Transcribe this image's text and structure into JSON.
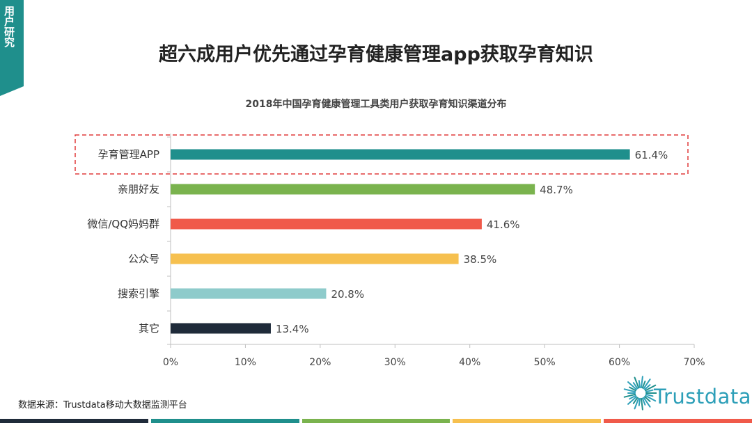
{
  "sidebar_tag": "用户研究",
  "header": {
    "title": "超六成用户优先通过孕育健康管理app获取孕育知识"
  },
  "chart_data": {
    "type": "bar",
    "orientation": "horizontal",
    "title": "2018年中国孕育健康管理工具类用户获取孕育知识渠道分布",
    "categories": [
      "孕育管理APP",
      "亲朋好友",
      "微信/QQ妈妈群",
      "公众号",
      "搜索引擎",
      "其它"
    ],
    "values": [
      61.4,
      48.7,
      41.6,
      38.5,
      20.8,
      13.4
    ],
    "value_labels": [
      "61.4%",
      "48.7%",
      "41.6%",
      "38.5%",
      "20.8%",
      "13.4%"
    ],
    "colors": [
      "#1f8f8c",
      "#7ab34e",
      "#f05a4a",
      "#f6c04f",
      "#8ecbcb",
      "#1f2b3a"
    ],
    "xlim": [
      0,
      70
    ],
    "xticks": [
      "0%",
      "10%",
      "20%",
      "30%",
      "40%",
      "50%",
      "60%",
      "70%"
    ],
    "highlighted_category": "孕育管理APP",
    "grid": false,
    "legend": "none"
  },
  "footer": {
    "source": "数据来源：Trustdata移动大数据监测平台",
    "logo_text": "Trustdata",
    "stripe_colors": [
      "#1f2b3a",
      "#1f8f8c",
      "#7ab34e",
      "#f6c04f",
      "#f05a4a"
    ]
  }
}
